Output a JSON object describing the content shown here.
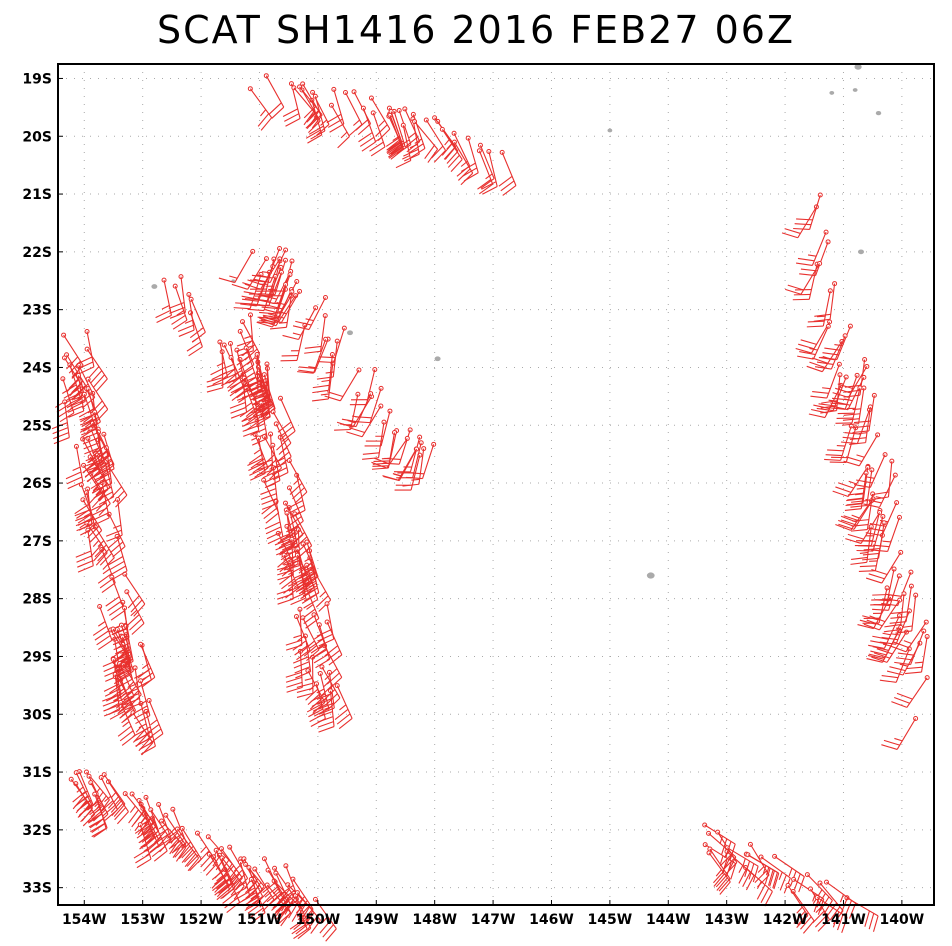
{
  "title": "SCAT SH1416 2016 FEB27 06Z",
  "colors": {
    "barb": "#e8302e",
    "land": "#aaaaaa",
    "grid": "#aaaaaa",
    "frame": "#000000"
  },
  "map": {
    "lon_range": [
      -154.45,
      -139.45
    ],
    "lat_range": [
      -33.3,
      -18.75
    ],
    "x_ticks": [
      {
        "value": -154,
        "label": "154W"
      },
      {
        "value": -153,
        "label": "153W"
      },
      {
        "value": -152,
        "label": "152W"
      },
      {
        "value": -151,
        "label": "151W"
      },
      {
        "value": -150,
        "label": "150W"
      },
      {
        "value": -149,
        "label": "149W"
      },
      {
        "value": -148,
        "label": "148W"
      },
      {
        "value": -147,
        "label": "147W"
      },
      {
        "value": -146,
        "label": "146W"
      },
      {
        "value": -145,
        "label": "145W"
      },
      {
        "value": -144,
        "label": "144W"
      },
      {
        "value": -143,
        "label": "143W"
      },
      {
        "value": -142,
        "label": "142W"
      },
      {
        "value": -141,
        "label": "141W"
      },
      {
        "value": -140,
        "label": "140W"
      }
    ],
    "y_ticks": [
      {
        "value": -19,
        "label": "19S"
      },
      {
        "value": -20,
        "label": "20S"
      },
      {
        "value": -21,
        "label": "21S"
      },
      {
        "value": -22,
        "label": "22S"
      },
      {
        "value": -23,
        "label": "23S"
      },
      {
        "value": -24,
        "label": "24S"
      },
      {
        "value": -25,
        "label": "25S"
      },
      {
        "value": -26,
        "label": "26S"
      },
      {
        "value": -27,
        "label": "27S"
      },
      {
        "value": -28,
        "label": "28S"
      },
      {
        "value": -29,
        "label": "29S"
      },
      {
        "value": -30,
        "label": "30S"
      },
      {
        "value": -31,
        "label": "31S"
      },
      {
        "value": -32,
        "label": "32S"
      },
      {
        "value": -33,
        "label": "33S"
      }
    ],
    "islands": [
      {
        "lon": -144.3,
        "lat": -27.6,
        "size": 1.3
      },
      {
        "lon": -145.0,
        "lat": -19.9,
        "size": 0.8
      },
      {
        "lon": -140.4,
        "lat": -19.6,
        "size": 0.9
      },
      {
        "lon": -140.8,
        "lat": -19.2,
        "size": 0.8
      },
      {
        "lon": -141.2,
        "lat": -19.25,
        "size": 0.8
      },
      {
        "lon": -140.7,
        "lat": -22.0,
        "size": 1.0
      },
      {
        "lon": -140.75,
        "lat": -18.8,
        "size": 1.2
      },
      {
        "lon": -152.8,
        "lat": -22.6,
        "size": 1.0
      },
      {
        "lon": -151.45,
        "lat": -22.5,
        "size": 0.6
      },
      {
        "lon": -149.45,
        "lat": -23.4,
        "size": 1.0
      },
      {
        "lon": -147.95,
        "lat": -23.85,
        "size": 1.0
      }
    ],
    "swaths": [
      {
        "lon0": -151.4,
        "lat0": -18.9,
        "lon1": -146.6,
        "lat1": -20.2,
        "n": 40,
        "dir": 155,
        "spd": [
          15,
          30
        ]
      },
      {
        "lon0": -154.3,
        "lat0": -23.2,
        "lon1": -153.1,
        "lat1": -30.0,
        "n": 80,
        "dir": 160,
        "spd": [
          25,
          45
        ]
      },
      {
        "lon0": -152.6,
        "lat0": -22.4,
        "lon1": -151.0,
        "lat1": -24.3,
        "n": 20,
        "dir": 165,
        "spd": [
          20,
          35
        ]
      },
      {
        "lon0": -151.2,
        "lat0": -23.2,
        "lon1": -149.8,
        "lat1": -29.7,
        "n": 70,
        "dir": 165,
        "spd": [
          25,
          45
        ]
      },
      {
        "lon0": -150.9,
        "lat0": -22.0,
        "lon1": -148.2,
        "lat1": -25.6,
        "n": 55,
        "dir": 200,
        "spd": [
          15,
          25
        ]
      },
      {
        "lon0": -154.1,
        "lat0": -31.0,
        "lon1": -150.1,
        "lat1": -33.2,
        "n": 60,
        "dir": 150,
        "spd": [
          30,
          45
        ]
      },
      {
        "lon0": -143.7,
        "lat0": -32.0,
        "lon1": -140.9,
        "lat1": -33.3,
        "n": 25,
        "dir": 135,
        "spd": [
          25,
          40
        ]
      },
      {
        "lon0": -141.5,
        "lat0": -21.0,
        "lon1": -139.5,
        "lat1": -30.0,
        "n": 70,
        "dir": 200,
        "spd": [
          20,
          35
        ]
      }
    ]
  }
}
